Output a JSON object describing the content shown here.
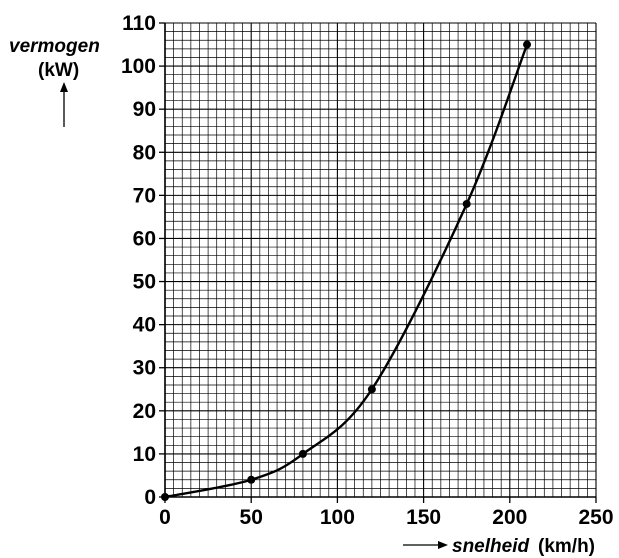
{
  "chart_data": {
    "type": "line",
    "ylabel_name": "vermogen",
    "ylabel_unit": "(kW)",
    "xlabel_name": "snelheid",
    "xlabel_unit": "(km/h)",
    "xlim": [
      0,
      250
    ],
    "ylim": [
      0,
      110
    ],
    "grid": true,
    "xticks": [
      "0",
      "50",
      "100",
      "150",
      "200",
      "250"
    ],
    "yticks": [
      "0",
      "10",
      "20",
      "30",
      "40",
      "50",
      "60",
      "70",
      "80",
      "90",
      "100",
      "110"
    ],
    "points": [
      {
        "x": 0,
        "y": 0
      },
      {
        "x": 50,
        "y": 4
      },
      {
        "x": 80,
        "y": 10
      },
      {
        "x": 120,
        "y": 25
      },
      {
        "x": 175,
        "y": 68
      },
      {
        "x": 210,
        "y": 105
      }
    ],
    "colors": {
      "line": "#000000",
      "grid": "#000000"
    }
  }
}
